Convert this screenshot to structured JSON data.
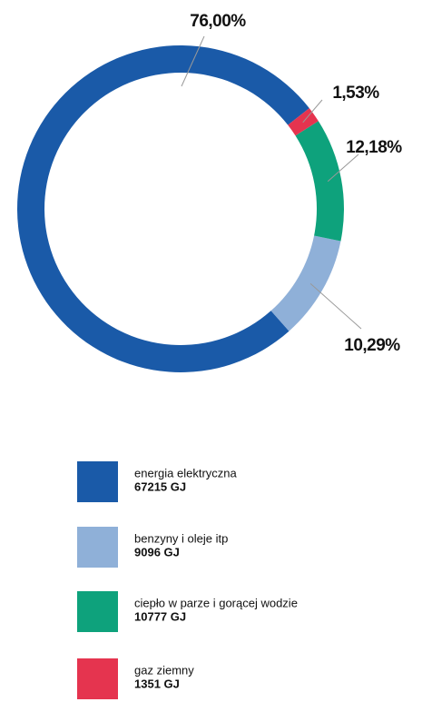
{
  "chart_data": {
    "type": "donut",
    "categories": [
      "energia elektryczna",
      "benzyny i oleje itp",
      "ciepło w parze i gorącej wodzie",
      "gaz ziemny"
    ],
    "values": [
      76.0,
      10.29,
      12.18,
      1.53
    ],
    "value_labels": [
      "76,00%",
      "10,29%",
      "12,18%",
      "1,53%"
    ],
    "colors": [
      "#1a5aa8",
      "#8fb0d8",
      "#0ea27c",
      "#e5344f"
    ],
    "amount_labels": [
      "67215 GJ",
      "9096 GJ",
      "10777 GJ",
      "1351 GJ"
    ]
  }
}
